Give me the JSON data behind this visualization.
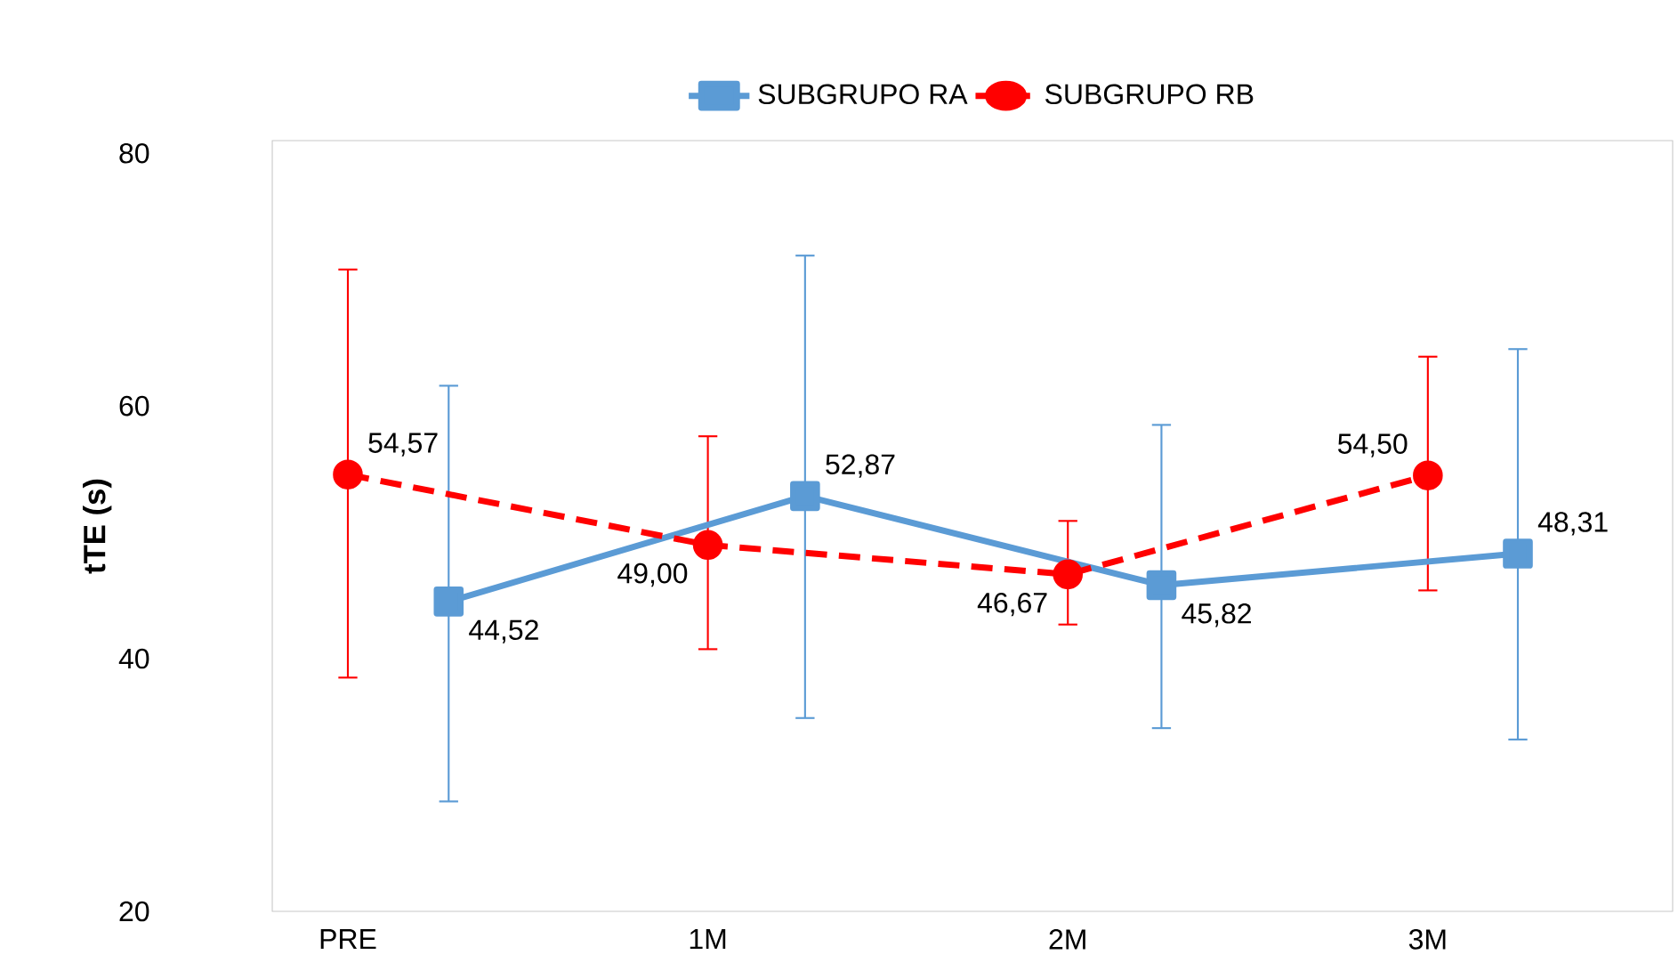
{
  "chart_data": {
    "type": "line",
    "ylabel": "tTE (s)",
    "xlim": [
      -0.21,
      3.68
    ],
    "xticks": [
      {
        "value": 0,
        "label": "PRE"
      },
      {
        "value": 1,
        "label": "1M"
      },
      {
        "value": 2,
        "label": "2M"
      },
      {
        "value": 3,
        "label": "3M"
      }
    ],
    "ylim": [
      20,
      81
    ],
    "yticks": [
      20,
      40,
      60,
      80
    ],
    "grid": false,
    "legend": "top",
    "series": [
      {
        "name": "SUBGRUPO RA",
        "color": "#5b9bd5",
        "marker": "square",
        "line_style": "solid",
        "x": [
          0.28,
          1.27,
          2.26,
          3.25
        ],
        "values": [
          44.52,
          52.87,
          45.82,
          48.31
        ],
        "errors": [
          [
            28.7,
            61.6
          ],
          [
            35.3,
            71.9
          ],
          [
            34.5,
            58.5
          ],
          [
            33.6,
            64.5
          ]
        ],
        "value_labels": [
          "44,52",
          "52,87",
          "45,82",
          "48,31"
        ]
      },
      {
        "name": "SUBGRUPO RB",
        "color": "#ff0000",
        "marker": "circle",
        "line_style": "dashed",
        "x": [
          0,
          1,
          2,
          3
        ],
        "values": [
          54.57,
          49.0,
          46.67,
          54.5
        ],
        "errors": [
          [
            38.5,
            70.8
          ],
          [
            40.75,
            57.6
          ],
          [
            42.7,
            50.9
          ],
          [
            45.4,
            63.9
          ]
        ],
        "value_labels": [
          "54,57",
          "49,00",
          "46,67",
          "54,50"
        ]
      }
    ]
  }
}
